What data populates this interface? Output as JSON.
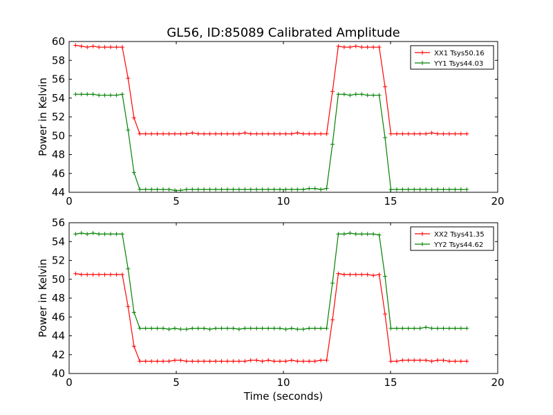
{
  "title": "GL56, ID:85089 Calibrated Amplitude",
  "xlabel": "Time (seconds)",
  "chart_data": [
    {
      "type": "line",
      "ylabel": "Power in Kelvin",
      "xlim": [
        0,
        20
      ],
      "ylim": [
        44,
        60
      ],
      "xticks": [
        0,
        5,
        10,
        15,
        20
      ],
      "yticks": [
        44,
        46,
        48,
        50,
        52,
        54,
        56,
        58,
        60
      ],
      "legend_position": "top-right",
      "series": [
        {
          "name": "XX1 Tsys50.16",
          "color": "#ff0000",
          "values": [
            59.6,
            59.5,
            59.4,
            59.5,
            59.4,
            59.4,
            59.4,
            59.4,
            59.4,
            56.1,
            51.9,
            50.2,
            50.2,
            50.2,
            50.2,
            50.2,
            50.2,
            50.2,
            50.2,
            50.2,
            50.3,
            50.2,
            50.2,
            50.2,
            50.2,
            50.2,
            50.2,
            50.2,
            50.2,
            50.3,
            50.2,
            50.2,
            50.2,
            50.2,
            50.2,
            50.2,
            50.2,
            50.2,
            50.3,
            50.2,
            50.2,
            50.2,
            50.2,
            50.2,
            54.7,
            59.5,
            59.4,
            59.4,
            59.5,
            59.4,
            59.4,
            59.4,
            59.4,
            55.2,
            50.2,
            50.2,
            50.2,
            50.2,
            50.2,
            50.2,
            50.2,
            50.3,
            50.2,
            50.2,
            50.2,
            50.2,
            50.2,
            50.2
          ]
        },
        {
          "name": "YY1 Tsys44.03",
          "color": "#008000",
          "values": [
            54.4,
            54.4,
            54.4,
            54.4,
            54.3,
            54.3,
            54.3,
            54.3,
            54.4,
            50.6,
            46.1,
            44.3,
            44.3,
            44.3,
            44.3,
            44.3,
            44.3,
            44.2,
            44.2,
            44.3,
            44.3,
            44.3,
            44.3,
            44.3,
            44.3,
            44.3,
            44.3,
            44.3,
            44.3,
            44.3,
            44.3,
            44.3,
            44.3,
            44.3,
            44.3,
            44.3,
            44.3,
            44.3,
            44.3,
            44.3,
            44.4,
            44.4,
            44.3,
            44.4,
            49.1,
            54.4,
            54.4,
            54.3,
            54.4,
            54.4,
            54.3,
            54.3,
            54.3,
            49.8,
            44.3,
            44.3,
            44.3,
            44.3,
            44.3,
            44.3,
            44.3,
            44.3,
            44.3,
            44.3,
            44.3,
            44.3,
            44.3,
            44.3
          ]
        }
      ]
    },
    {
      "type": "line",
      "ylabel": "Power in Kelvin",
      "xlim": [
        0,
        20
      ],
      "ylim": [
        40,
        56
      ],
      "xticks": [
        0,
        5,
        10,
        15,
        20
      ],
      "yticks": [
        40,
        42,
        44,
        46,
        48,
        50,
        52,
        54,
        56
      ],
      "legend_position": "top-right",
      "series": [
        {
          "name": "XX2 Tsys41.35",
          "color": "#ff0000",
          "values": [
            50.6,
            50.5,
            50.5,
            50.5,
            50.5,
            50.5,
            50.5,
            50.5,
            50.5,
            47.1,
            42.9,
            41.3,
            41.3,
            41.3,
            41.3,
            41.3,
            41.3,
            41.4,
            41.4,
            41.3,
            41.3,
            41.3,
            41.3,
            41.3,
            41.3,
            41.3,
            41.3,
            41.3,
            41.3,
            41.3,
            41.4,
            41.4,
            41.3,
            41.4,
            41.3,
            41.3,
            41.3,
            41.4,
            41.3,
            41.3,
            41.3,
            41.3,
            41.4,
            41.4,
            45.7,
            50.6,
            50.5,
            50.5,
            50.5,
            50.5,
            50.5,
            50.4,
            50.5,
            46.3,
            41.3,
            41.3,
            41.4,
            41.4,
            41.4,
            41.4,
            41.4,
            41.3,
            41.4,
            41.4,
            41.3,
            41.3,
            41.3,
            41.3
          ]
        },
        {
          "name": "YY2 Tsys44.62",
          "color": "#008000",
          "values": [
            54.8,
            54.9,
            54.8,
            54.9,
            54.8,
            54.8,
            54.8,
            54.8,
            54.8,
            51.1,
            46.5,
            44.8,
            44.8,
            44.8,
            44.8,
            44.8,
            44.7,
            44.8,
            44.7,
            44.7,
            44.8,
            44.8,
            44.8,
            44.7,
            44.8,
            44.8,
            44.8,
            44.8,
            44.7,
            44.8,
            44.8,
            44.8,
            44.8,
            44.8,
            44.8,
            44.8,
            44.7,
            44.8,
            44.7,
            44.7,
            44.8,
            44.8,
            44.8,
            44.8,
            49.6,
            54.8,
            54.8,
            54.9,
            54.8,
            54.8,
            54.8,
            54.8,
            54.7,
            50.3,
            44.8,
            44.8,
            44.8,
            44.8,
            44.8,
            44.8,
            44.9,
            44.8,
            44.8,
            44.8,
            44.8,
            44.8,
            44.8,
            44.8
          ]
        }
      ]
    }
  ]
}
